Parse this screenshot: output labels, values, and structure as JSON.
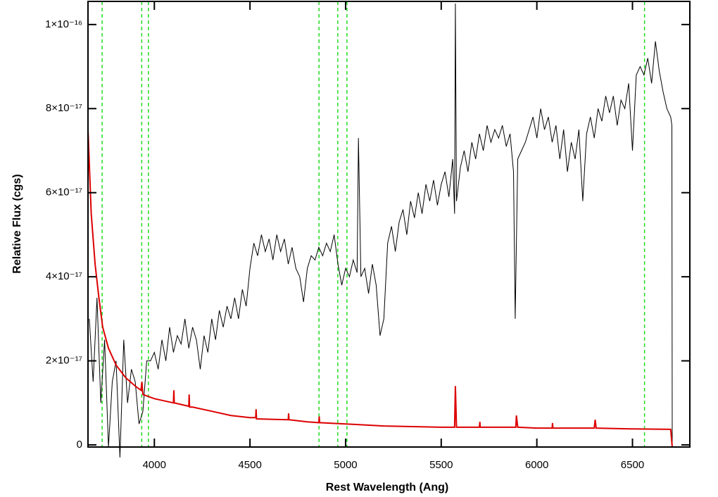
{
  "chart_data": {
    "type": "line",
    "x_label": "Rest Wavelength (Ang)",
    "y_label": "Relative Flux (cgs)",
    "xlim": [
      3653,
      6800
    ],
    "ylim": [
      -5e-19,
      1.055e-16
    ],
    "xticks": [
      4000,
      4500,
      5000,
      5500,
      6000,
      6500
    ],
    "yticks": [
      0,
      {
        "value": 2e-17,
        "label": "2×10⁻¹⁷"
      },
      {
        "value": 4e-17,
        "label": "4×10⁻¹⁷"
      },
      {
        "value": 6e-17,
        "label": "6×10⁻¹⁷"
      },
      {
        "value": 8e-17,
        "label": "8×10⁻¹⁷"
      },
      {
        "value": 1e-16,
        "label": "1×10⁻¹⁶"
      }
    ],
    "vlines": {
      "color": "#22dd22",
      "values": [
        3727,
        3934,
        3969,
        4861,
        4959,
        5007,
        6563
      ]
    },
    "series": [
      {
        "color": "#000000",
        "x": [
          3660,
          3680,
          3700,
          3720,
          3740,
          3760,
          3780,
          3800,
          3820,
          3840,
          3860,
          3880,
          3900,
          3920,
          3940,
          3960,
          3980,
          4000,
          4020,
          4040,
          4060,
          4080,
          4100,
          4120,
          4140,
          4160,
          4180,
          4200,
          4220,
          4240,
          4260,
          4280,
          4300,
          4320,
          4340,
          4360,
          4380,
          4400,
          4420,
          4440,
          4460,
          4480,
          4500,
          4520,
          4540,
          4560,
          4580,
          4600,
          4620,
          4640,
          4660,
          4680,
          4700,
          4720,
          4740,
          4760,
          4780,
          4800,
          4820,
          4840,
          4860,
          4880,
          4900,
          4920,
          4940,
          4960,
          4980,
          5000,
          5020,
          5040,
          5060,
          5067,
          5080,
          5100,
          5120,
          5140,
          5160,
          5180,
          5200,
          5220,
          5240,
          5260,
          5280,
          5300,
          5320,
          5340,
          5360,
          5380,
          5400,
          5420,
          5440,
          5460,
          5480,
          5500,
          5520,
          5540,
          5560,
          5570,
          5574,
          5580,
          5600,
          5620,
          5640,
          5660,
          5680,
          5700,
          5720,
          5740,
          5760,
          5780,
          5800,
          5820,
          5840,
          5860,
          5878,
          5887,
          5900,
          5920,
          5940,
          5960,
          5980,
          6000,
          6020,
          6040,
          6060,
          6080,
          6100,
          6120,
          6140,
          6160,
          6180,
          6200,
          6220,
          6240,
          6260,
          6280,
          6300,
          6320,
          6340,
          6360,
          6380,
          6400,
          6420,
          6440,
          6460,
          6480,
          6500,
          6520,
          6540,
          6560,
          6580,
          6600,
          6620,
          6640,
          6660,
          6680,
          6700,
          6706,
          6708,
          6800
        ],
        "values": [
          3e-17,
          1.5e-17,
          3.5e-17,
          1e-17,
          2.5e-17,
          -5e-19,
          1.5e-17,
          2e-17,
          -3e-18,
          2.5e-17,
          1e-17,
          1.8e-17,
          1.5e-17,
          5e-18,
          8e-18,
          2e-17,
          2e-17,
          2.2e-17,
          1.8e-17,
          2.5e-17,
          2e-17,
          2.8e-17,
          2.2e-17,
          2.6e-17,
          2.4e-17,
          3e-17,
          2.3e-17,
          2.8e-17,
          2.5e-17,
          1.8e-17,
          2.6e-17,
          2.2e-17,
          3e-17,
          2.5e-17,
          3.2e-17,
          2.8e-17,
          3.3e-17,
          3e-17,
          3.5e-17,
          3e-17,
          3.7e-17,
          3.3e-17,
          4.2e-17,
          4.8e-17,
          4.5e-17,
          5e-17,
          4.6e-17,
          4.9e-17,
          4.4e-17,
          5e-17,
          4.6e-17,
          4.9e-17,
          4.3e-17,
          4.7e-17,
          4.2e-17,
          4e-17,
          3.4e-17,
          4.2e-17,
          4.5e-17,
          4.4e-17,
          4.7e-17,
          4.5e-17,
          4.8e-17,
          4.6e-17,
          5e-17,
          4.3e-17,
          3.8e-17,
          4.2e-17,
          4e-17,
          4.4e-17,
          4.1e-17,
          7.3e-17,
          4e-17,
          4.2e-17,
          3.6e-17,
          4.3e-17,
          3.8e-17,
          2.6e-17,
          3e-17,
          4.8e-17,
          5.2e-17,
          4.6e-17,
          5.3e-17,
          5.6e-17,
          5e-17,
          5.8e-17,
          5.4e-17,
          6e-17,
          5.5e-17,
          6.2e-17,
          5.8e-17,
          6.3e-17,
          5.7e-17,
          6.2e-17,
          6.5e-17,
          5.9e-17,
          6.8e-17,
          5.5e-17,
          1.05e-16,
          5.8e-17,
          6.6e-17,
          7e-17,
          6.5e-17,
          7.2e-17,
          6.8e-17,
          7.4e-17,
          7e-17,
          7.6e-17,
          7.2e-17,
          7.5e-17,
          7.3e-17,
          7.6e-17,
          7.1e-17,
          7.4e-17,
          6.5e-17,
          3e-17,
          6.8e-17,
          7e-17,
          7.2e-17,
          7.5e-17,
          7.8e-17,
          7.3e-17,
          8e-17,
          7.5e-17,
          7.8e-17,
          7.2e-17,
          7.6e-17,
          6.8e-17,
          7.5e-17,
          6.5e-17,
          7.2e-17,
          6.8e-17,
          7.5e-17,
          5.8e-17,
          7.4e-17,
          7.8e-17,
          7.3e-17,
          8e-17,
          7.7e-17,
          8.3e-17,
          7.9e-17,
          8.3e-17,
          7.6e-17,
          8.2e-17,
          8e-17,
          8.6e-17,
          7e-17,
          8.8e-17,
          9e-17,
          8.8e-17,
          9.2e-17,
          8.6e-17,
          9.6e-17,
          8.9e-17,
          8.4e-17,
          8e-17,
          7.8e-17,
          7.6e-17,
          -5e-19,
          -5e-19
        ]
      },
      {
        "color": "#dd0000",
        "x": [
          3653,
          3670,
          3690,
          3710,
          3730,
          3760,
          3800,
          3850,
          3900,
          3930,
          3935,
          3940,
          4000,
          4100,
          4102,
          4104,
          4180,
          4182,
          4184,
          4200,
          4300,
          4400,
          4500,
          4530,
          4532,
          4534,
          4700,
          4702,
          4704,
          4800,
          4860,
          4862,
          4864,
          5000,
          5200,
          5500,
          5570,
          5574,
          5580,
          5700,
          5702,
          5704,
          5890,
          5893,
          5900,
          6000,
          6080,
          6082,
          6084,
          6300,
          6305,
          6310,
          6500,
          6700,
          6708,
          6800
        ],
        "values": [
          7.5e-17,
          5.5e-17,
          4.3e-17,
          3.5e-17,
          2.8e-17,
          2.3e-17,
          1.9e-17,
          1.6e-17,
          1.4e-17,
          1.3e-17,
          1.5e-17,
          1.2e-17,
          1.1e-17,
          1e-17,
          1.3e-17,
          1e-17,
          9.2e-18,
          1.2e-17,
          9e-18,
          9e-18,
          8e-18,
          7e-18,
          6.5e-18,
          6.5e-18,
          8.5e-18,
          6.2e-18,
          6e-18,
          7.5e-18,
          6e-18,
          5.5e-18,
          5.3e-18,
          6.8e-18,
          5.3e-18,
          5e-18,
          4.5e-18,
          4.2e-18,
          4.2e-18,
          1.4e-17,
          4.2e-18,
          4.2e-18,
          5.5e-18,
          4.2e-18,
          4.2e-18,
          7e-18,
          4.2e-18,
          4e-18,
          4e-18,
          5.2e-18,
          4e-18,
          4e-18,
          6e-18,
          4e-18,
          3.8e-18,
          3.7e-18,
          -5e-19,
          -5e-19
        ]
      }
    ]
  }
}
